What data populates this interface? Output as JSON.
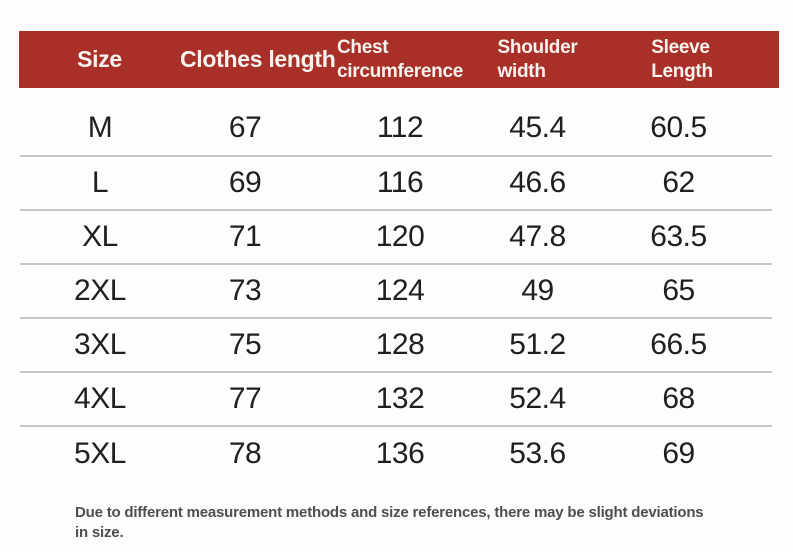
{
  "chart_data": {
    "type": "table",
    "columns": [
      "Size",
      "Clothes length",
      "Chest circumference",
      "Shoulder width",
      "Sleeve Length"
    ],
    "rows": [
      [
        "M",
        67,
        112,
        45.4,
        60.5
      ],
      [
        "L",
        69,
        116,
        46.6,
        62
      ],
      [
        "XL",
        71,
        120,
        47.8,
        63.5
      ],
      [
        "2XL",
        73,
        124,
        49,
        65
      ],
      [
        "3XL",
        75,
        128,
        51.2,
        66.5
      ],
      [
        "4XL",
        77,
        132,
        52.4,
        68
      ],
      [
        "5XL",
        78,
        136,
        53.6,
        69
      ]
    ],
    "note": "Due to different measurement methods and size references, there may be slight deviations in size."
  },
  "header": {
    "size": "Size",
    "clothes_length": "Clothes length",
    "chest_line1": "Chest",
    "chest_line2": "circumference",
    "shoulder_line1": "Shoulder",
    "shoulder_line2": "width",
    "sleeve_line1": "Sleeve",
    "sleeve_line2": "Length"
  },
  "rows": [
    {
      "size": "M",
      "clothes_length": "67",
      "chest_circumference": "112",
      "shoulder_width": "45.4",
      "sleeve_length": "60.5"
    },
    {
      "size": "L",
      "clothes_length": "69",
      "chest_circumference": "116",
      "shoulder_width": "46.6",
      "sleeve_length": "62"
    },
    {
      "size": "XL",
      "clothes_length": "71",
      "chest_circumference": "120",
      "shoulder_width": "47.8",
      "sleeve_length": "63.5"
    },
    {
      "size": "2XL",
      "clothes_length": "73",
      "chest_circumference": "124",
      "shoulder_width": "49",
      "sleeve_length": "65"
    },
    {
      "size": "3XL",
      "clothes_length": "75",
      "chest_circumference": "128",
      "shoulder_width": "51.2",
      "sleeve_length": "66.5"
    },
    {
      "size": "4XL",
      "clothes_length": "77",
      "chest_circumference": "132",
      "shoulder_width": "52.4",
      "sleeve_length": "68"
    },
    {
      "size": "5XL",
      "clothes_length": "78",
      "chest_circumference": "136",
      "shoulder_width": "53.6",
      "sleeve_length": "69"
    }
  ],
  "footer": {
    "line1": "Due to different measurement methods and size references, there may be slight deviations",
    "line2": "in size."
  },
  "colors": {
    "page_bg": "#fdfdfd",
    "header_bg": "#a93028",
    "header_text": "#f7f3ef",
    "divider": "#c6c6c6",
    "body_text": "#1f1f1f",
    "note_text": "#4e4e4e"
  }
}
